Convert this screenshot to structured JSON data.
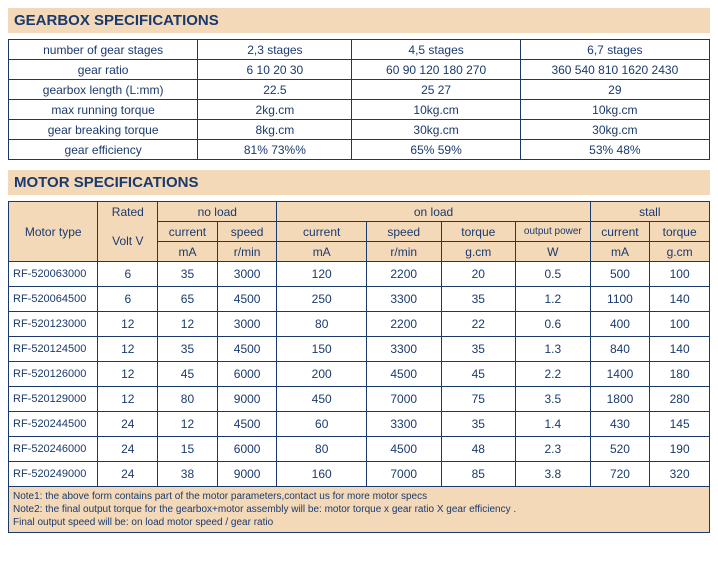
{
  "gearbox": {
    "title": "GEARBOX SPECIFICATIONS",
    "headers": [
      "number of gear stages",
      "2,3 stages",
      "4,5 stages",
      "6,7 stages"
    ],
    "rows": [
      [
        "gear ratio",
        "6  10  20  30",
        "60 90 120 180 270",
        "360  540 810 1620 2430"
      ],
      [
        "gearbox length (L:mm)",
        "22.5",
        "25  27",
        "29"
      ],
      [
        "max running torque",
        "2kg.cm",
        "10kg.cm",
        "10kg.cm"
      ],
      [
        "gear breaking torque",
        "8kg.cm",
        "30kg.cm",
        "30kg.cm"
      ],
      [
        "gear efficiency",
        "81%   73%%",
        "65%   59%",
        "53%    48%"
      ]
    ]
  },
  "motor": {
    "title": "MOTOR SPECIFICATIONS",
    "group_headers": {
      "motor_type": "Motor type",
      "rated_volt1": "Rated",
      "rated_volt2": "Volt   V",
      "no_load": "no load",
      "on_load": "on load",
      "stall": "stall"
    },
    "sub_headers": [
      "current",
      "speed",
      "current",
      "speed",
      "torque",
      "output power",
      "current",
      "torque"
    ],
    "units": [
      "mA",
      "r/min",
      "mA",
      "r/min",
      "g.cm",
      "W",
      "mA",
      "g.cm"
    ],
    "rows": [
      [
        "RF-520063000",
        "6",
        "35",
        "3000",
        "120",
        "2200",
        "20",
        "0.5",
        "500",
        "100"
      ],
      [
        "RF-520064500",
        "6",
        "65",
        "4500",
        "250",
        "3300",
        "35",
        "1.2",
        "1100",
        "140"
      ],
      [
        "RF-520123000",
        "12",
        "12",
        "3000",
        "80",
        "2200",
        "22",
        "0.6",
        "400",
        "100"
      ],
      [
        "RF-520124500",
        "12",
        "35",
        "4500",
        "150",
        "3300",
        "35",
        "1.3",
        "840",
        "140"
      ],
      [
        "RF-520126000",
        "12",
        "45",
        "6000",
        "200",
        "4500",
        "45",
        "2.2",
        "1400",
        "180"
      ],
      [
        "RF-520129000",
        "12",
        "80",
        "9000",
        "450",
        "7000",
        "75",
        "3.5",
        "1800",
        "280"
      ],
      [
        "RF-520244500",
        "24",
        "12",
        "4500",
        "60",
        "3300",
        "35",
        "1.4",
        "430",
        "145"
      ],
      [
        "RF-520246000",
        "24",
        "15",
        "6000",
        "80",
        "4500",
        "48",
        "2.3",
        "520",
        "190"
      ],
      [
        "RF-520249000",
        "24",
        "38",
        "9000",
        "160",
        "7000",
        "85",
        "3.8",
        "720",
        "320"
      ]
    ],
    "notes": [
      "Note1: the above form contains part of the motor parameters,contact us for more motor specs",
      "Note2: the final output torque for the gearbox+motor assembly will be: motor torque x gear ratio X gear efficiency .",
      "Final output speed will be: on load motor speed / gear ratio"
    ]
  }
}
